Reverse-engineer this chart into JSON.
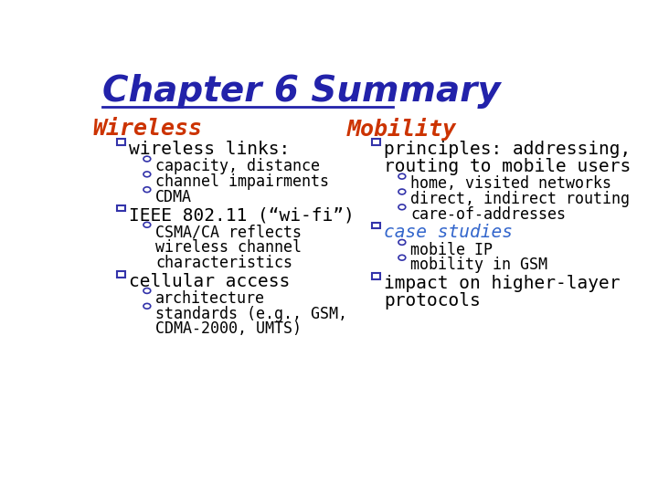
{
  "title": "Chapter 6 Summary",
  "title_color": "#2222AA",
  "title_fontsize": 28,
  "bg_color": "#FFFFFF",
  "section_left_header": "Wireless",
  "section_right_header": "Mobility",
  "section_header_color": "#CC3300",
  "section_header_fontsize": 18,
  "bullet_color": "#3333AA",
  "bullet_fontsize": 14,
  "sub_fontsize": 12,
  "special_color": "#3366CC",
  "left_items": [
    {
      "text": "wireless links:",
      "color": "#000000",
      "italic": false,
      "subitems": [
        "capacity, distance",
        "channel impairments",
        "CDMA"
      ]
    },
    {
      "text": "IEEE 802.11 (“wi-fi”)",
      "color": "#000000",
      "italic": false,
      "subitems": [
        "CSMA/CA reflects\nwireless channel\ncharacteristics"
      ]
    },
    {
      "text": "cellular access",
      "color": "#000000",
      "italic": false,
      "subitems": [
        "architecture",
        "standards (e.g., GSM,\nCDMA-2000, UMTS)"
      ]
    }
  ],
  "right_items": [
    {
      "text": "principles: addressing,\nrouting to mobile users",
      "color": "#000000",
      "italic": false,
      "subitems": [
        "home, visited networks",
        "direct, indirect routing",
        "care-of-addresses"
      ]
    },
    {
      "text": "case studies",
      "color": "#3366CC",
      "italic": true,
      "subitems": [
        "mobile IP",
        "mobility in GSM"
      ]
    },
    {
      "text": "impact on higher-layer\nprotocols",
      "color": "#000000",
      "italic": false,
      "subitems": []
    }
  ]
}
